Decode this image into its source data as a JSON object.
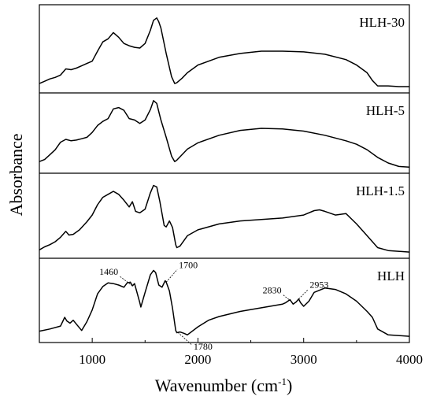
{
  "chart_data": {
    "type": "line",
    "xlabel": "Wavenumber (cm",
    "xlabel_sup": "-1",
    "xlabel_close": ")",
    "ylabel": "Absorbance",
    "xlim": [
      500,
      4000
    ],
    "xticks": [
      "1000",
      "2000",
      "3000",
      "4000"
    ],
    "xtick_values": [
      1000,
      2000,
      3000,
      4000
    ],
    "line_color": "#000000",
    "series": [
      {
        "name": "HLH-30",
        "x": [
          500,
          550,
          600,
          650,
          700,
          750,
          800,
          850,
          900,
          950,
          1000,
          1050,
          1100,
          1150,
          1200,
          1250,
          1300,
          1350,
          1400,
          1450,
          1500,
          1550,
          1580,
          1610,
          1630,
          1650,
          1700,
          1750,
          1780,
          1800,
          1850,
          1900,
          2000,
          2200,
          2400,
          2600,
          2800,
          3000,
          3200,
          3400,
          3500,
          3600,
          3650,
          3700,
          3800,
          3900,
          4000
        ],
        "y": [
          0.06,
          0.09,
          0.12,
          0.14,
          0.17,
          0.25,
          0.24,
          0.26,
          0.29,
          0.32,
          0.35,
          0.48,
          0.6,
          0.64,
          0.72,
          0.66,
          0.58,
          0.55,
          0.53,
          0.52,
          0.58,
          0.75,
          0.88,
          0.91,
          0.86,
          0.78,
          0.45,
          0.15,
          0.06,
          0.07,
          0.13,
          0.2,
          0.3,
          0.4,
          0.45,
          0.48,
          0.48,
          0.47,
          0.44,
          0.37,
          0.3,
          0.2,
          0.1,
          0.03,
          0.03,
          0.02,
          0.02
        ]
      },
      {
        "name": "HLH-5",
        "x": [
          500,
          550,
          600,
          650,
          700,
          750,
          800,
          850,
          900,
          950,
          1000,
          1050,
          1100,
          1150,
          1200,
          1250,
          1300,
          1350,
          1400,
          1450,
          1500,
          1550,
          1580,
          1610,
          1630,
          1650,
          1700,
          1750,
          1780,
          1800,
          1850,
          1900,
          2000,
          2200,
          2400,
          2600,
          2800,
          3000,
          3200,
          3400,
          3500,
          3600,
          3700,
          3800,
          3900,
          4000
        ],
        "y": [
          0.1,
          0.13,
          0.2,
          0.27,
          0.38,
          0.42,
          0.4,
          0.41,
          0.43,
          0.45,
          0.52,
          0.62,
          0.68,
          0.72,
          0.86,
          0.88,
          0.84,
          0.72,
          0.7,
          0.65,
          0.7,
          0.85,
          0.98,
          0.94,
          0.82,
          0.7,
          0.45,
          0.18,
          0.1,
          0.12,
          0.2,
          0.28,
          0.37,
          0.48,
          0.55,
          0.58,
          0.57,
          0.54,
          0.48,
          0.4,
          0.35,
          0.27,
          0.16,
          0.08,
          0.03,
          0.02
        ]
      },
      {
        "name": "HLH-1.5",
        "x": [
          500,
          550,
          600,
          650,
          700,
          750,
          780,
          820,
          880,
          950,
          1000,
          1050,
          1100,
          1150,
          1200,
          1250,
          1300,
          1350,
          1380,
          1410,
          1450,
          1500,
          1550,
          1580,
          1610,
          1640,
          1680,
          1700,
          1730,
          1760,
          1790,
          1800,
          1830,
          1900,
          2000,
          2200,
          2400,
          2600,
          2800,
          3000,
          3100,
          3150,
          3200,
          3300,
          3400,
          3500,
          3600,
          3700,
          3800,
          4000
        ],
        "y": [
          0.05,
          0.09,
          0.12,
          0.16,
          0.22,
          0.3,
          0.25,
          0.26,
          0.32,
          0.43,
          0.52,
          0.66,
          0.76,
          0.8,
          0.84,
          0.8,
          0.72,
          0.63,
          0.7,
          0.57,
          0.55,
          0.6,
          0.82,
          0.92,
          0.9,
          0.7,
          0.38,
          0.36,
          0.44,
          0.35,
          0.12,
          0.08,
          0.1,
          0.24,
          0.32,
          0.4,
          0.44,
          0.46,
          0.48,
          0.52,
          0.58,
          0.59,
          0.57,
          0.52,
          0.54,
          0.4,
          0.24,
          0.08,
          0.04,
          0.02
        ]
      },
      {
        "name": "HLH",
        "x": [
          500,
          600,
          700,
          740,
          760,
          790,
          820,
          860,
          900,
          950,
          1000,
          1050,
          1100,
          1150,
          1200,
          1250,
          1300,
          1330,
          1360,
          1380,
          1400,
          1450,
          1460,
          1500,
          1550,
          1580,
          1600,
          1630,
          1660,
          1690,
          1700,
          1730,
          1760,
          1790,
          1800,
          1830,
          1870,
          1900,
          2000,
          2100,
          2200,
          2400,
          2600,
          2800,
          2830,
          2870,
          2900,
          2930,
          2953,
          2970,
          3000,
          3050,
          3100,
          3200,
          3300,
          3400,
          3500,
          3600,
          3650,
          3700,
          3800,
          4000
        ],
        "y": [
          0.09,
          0.12,
          0.16,
          0.28,
          0.23,
          0.2,
          0.24,
          0.17,
          0.1,
          0.22,
          0.38,
          0.6,
          0.7,
          0.75,
          0.74,
          0.72,
          0.69,
          0.75,
          0.76,
          0.71,
          0.74,
          0.48,
          0.42,
          0.62,
          0.86,
          0.92,
          0.89,
          0.72,
          0.69,
          0.78,
          0.76,
          0.64,
          0.4,
          0.1,
          0.07,
          0.08,
          0.06,
          0.04,
          0.15,
          0.24,
          0.29,
          0.36,
          0.41,
          0.46,
          0.48,
          0.52,
          0.46,
          0.49,
          0.53,
          0.48,
          0.43,
          0.5,
          0.62,
          0.68,
          0.66,
          0.6,
          0.5,
          0.36,
          0.28,
          0.12,
          0.04,
          0.02
        ]
      }
    ],
    "annotations": [
      {
        "text": "1460",
        "series": "HLH",
        "x": 1380
      },
      {
        "text": "1700",
        "series": "HLH",
        "x": 1700
      },
      {
        "text": "1780",
        "series": "HLH",
        "x": 1810
      },
      {
        "text": "2830",
        "series": "HLH",
        "x": 2880
      },
      {
        "text": "2953",
        "series": "HLH",
        "x": 2953
      }
    ]
  }
}
